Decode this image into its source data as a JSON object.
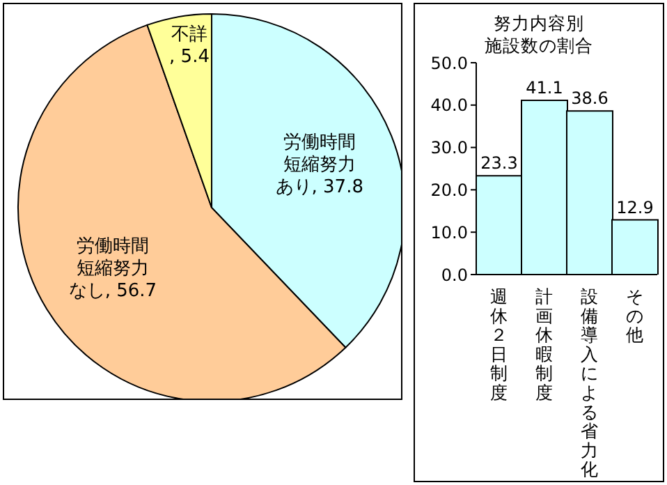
{
  "chart_data": [
    {
      "type": "pie",
      "categories": [
        "労働時間短縮努力あり",
        "労働時間短縮努力なし",
        "不詳"
      ],
      "values": [
        37.8,
        56.7,
        5.4
      ],
      "colors": [
        "#ccffff",
        "#ffcc99",
        "#ffff99"
      ],
      "value_labels": [
        ", 37.8",
        ", 56.7",
        ", 5.4"
      ],
      "legend": false
    },
    {
      "type": "bar",
      "title": "努力内容別施設数の割合",
      "categories": [
        "週休２日制度",
        "計画休暇制度",
        "設備導入による省力化",
        "その他"
      ],
      "values": [
        23.3,
        41.1,
        38.6,
        12.9
      ],
      "color": "#ccffff",
      "data_labels": true,
      "ylim": [
        0,
        50
      ],
      "yticks": [
        {
          "value": 0,
          "label": "0.0"
        },
        {
          "value": 10,
          "label": "10.0"
        },
        {
          "value": 20,
          "label": "20.0"
        },
        {
          "value": 30,
          "label": "30.0"
        },
        {
          "value": 40,
          "label": "40.0"
        },
        {
          "value": 50,
          "label": "50.0"
        }
      ],
      "grid": false,
      "legend": false
    }
  ]
}
